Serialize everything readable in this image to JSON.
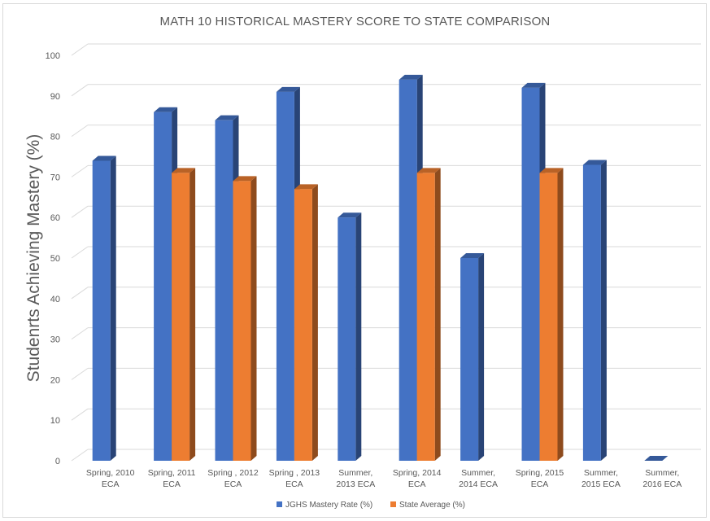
{
  "chart_data": {
    "type": "bar",
    "title": "MATH 10 HISTORICAL MASTERY SCORE TO STATE COMPARISON",
    "xlabel": "",
    "ylabel": "Studenrts Achieving Mastery (%)",
    "ylim": [
      0,
      100
    ],
    "yticks": [
      0,
      10,
      20,
      30,
      40,
      50,
      60,
      70,
      80,
      90,
      100
    ],
    "grid": true,
    "legend_position": "bottom",
    "categories": [
      [
        "Spring, 2010",
        "ECA"
      ],
      [
        "Spring, 2011",
        "ECA"
      ],
      [
        "Spring , 2012",
        "ECA"
      ],
      [
        "Spring , 2013",
        "ECA"
      ],
      [
        "Summer,",
        "2013 ECA"
      ],
      [
        "Spring, 2014",
        "ECA"
      ],
      [
        "Summer,",
        "2014 ECA"
      ],
      [
        "Spring, 2015",
        "ECA"
      ],
      [
        "Summer,",
        "2015 ECA"
      ],
      [
        "Summer,",
        "2016 ECA"
      ]
    ],
    "series": [
      {
        "name": "JGHS Mastery Rate (%)",
        "color": "#4472c4",
        "values": [
          74,
          86,
          84,
          91,
          60,
          94,
          50,
          92,
          73,
          0
        ]
      },
      {
        "name": "State Average (%)",
        "color": "#ed7d31",
        "values": [
          null,
          71,
          69,
          67,
          null,
          71,
          null,
          71,
          null,
          null
        ]
      }
    ]
  }
}
